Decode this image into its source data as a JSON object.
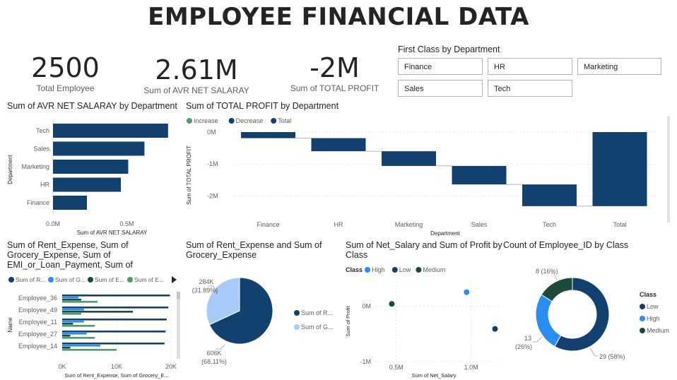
{
  "header": {
    "title": "EMPLOYEE FINANCIAL DATA"
  },
  "kpis": [
    {
      "value": "2500",
      "label": "Total Employee"
    },
    {
      "value": "2.61M",
      "label": "Sum of AVR NET SALARAY"
    },
    {
      "value": "-2M",
      "label": "Sum of TOTAL PROFIT"
    }
  ],
  "slicer": {
    "title": "First Class by Department",
    "options": [
      "Finance",
      "HR",
      "Marketing",
      "Sales",
      "Tech"
    ]
  },
  "colors": {
    "navy": "#12406f",
    "blue": "#2b8cf2",
    "light_blue": "#a6cbf8",
    "dark_green": "#1e4a3c",
    "green": "#4e9a6f",
    "connector": "#9e9e9e"
  },
  "chart_data": [
    {
      "id": "salary_by_dept",
      "type": "bar",
      "orientation": "horizontal",
      "title": "Sum of AVR NET SALARAY by Department",
      "xlabel": "Sum of AVR NET SALARAY",
      "ylabel": "Department",
      "categories": [
        "Tech",
        "Sales",
        "Marketing",
        "HR",
        "Finance"
      ],
      "values": [
        0.78,
        0.62,
        0.51,
        0.46,
        0.23
      ],
      "xlim": [
        0,
        0.8
      ],
      "xticks": [
        {
          "v": 0,
          "label": "0.0M"
        },
        {
          "v": 0.5,
          "label": "0.5M"
        }
      ]
    },
    {
      "id": "profit_waterfall",
      "type": "bar",
      "subtype": "waterfall",
      "title": "Sum of TOTAL PROFIT by Department",
      "xlabel": "Department",
      "ylabel": "Sum of TOTAL PROFIT",
      "legend": [
        "Increase",
        "Decrease",
        "Total"
      ],
      "categories": [
        "Finance",
        "HR",
        "Marketing",
        "Sales",
        "Tech",
        "Total"
      ],
      "values": [
        -0.19,
        -0.41,
        -0.46,
        -0.58,
        -0.68,
        -2.32
      ],
      "ylim": [
        -2.5,
        0
      ],
      "yticks": [
        {
          "v": 0,
          "label": "0M"
        },
        {
          "v": -1,
          "label": "-1M"
        },
        {
          "v": -2,
          "label": "-2M"
        }
      ]
    },
    {
      "id": "expenses_by_employee",
      "type": "bar",
      "orientation": "horizontal",
      "title": "Sum of Rent_Expense, Sum of Grocery_Expense, Sum of EMI_or_Loan_Payment, Sum of Entertain...",
      "xlabel": "Sum of Rent_Expense, Sum of Grocery_E...",
      "ylabel": "Name",
      "legend": [
        "Sum of R...",
        "Sum of G...",
        "Sum of E...",
        "Sum of E..."
      ],
      "categories": [
        "Employee_36",
        "Employee_49",
        "Employee_11",
        "Employee_27",
        "Employee_14"
      ],
      "series": [
        {
          "values": [
            19800,
            19500,
            19200,
            19000,
            18800
          ]
        },
        {
          "values": [
            3000,
            4000,
            4000,
            4500,
            7000
          ]
        },
        {
          "values": [
            3500,
            13000,
            2000,
            1500,
            1500
          ]
        },
        {
          "values": [
            6500,
            3500,
            6000,
            6000,
            10000
          ]
        }
      ],
      "xlim": [
        0,
        20000
      ],
      "xticks": [
        {
          "v": 0,
          "label": "0K"
        },
        {
          "v": 10000,
          "label": "10K"
        },
        {
          "v": 20000,
          "label": "20K"
        }
      ]
    },
    {
      "id": "rent_grocery_pie",
      "type": "pie",
      "title": "Sum of Rent_Expense and Sum of Grocery_Expense",
      "legend": [
        "Sum of R...",
        "Sum of G..."
      ],
      "slices": [
        {
          "value": 606,
          "label": "606K",
          "pct": "(68.11%)"
        },
        {
          "value": 284,
          "label": "284K",
          "pct": "(31.89%)"
        }
      ]
    },
    {
      "id": "salary_profit_scatter",
      "type": "scatter",
      "title": "Sum of Net_Salary and Sum of Profit by Class",
      "legend_title": "Class",
      "xlabel": "Sum of Net_Salary",
      "ylabel": "Sum of Profit",
      "points": [
        {
          "name": "High",
          "x": 0.97,
          "y": 0.25
        },
        {
          "name": "Low",
          "x": 1.16,
          "y": -0.41
        },
        {
          "name": "Medium",
          "x": 0.47,
          "y": 0.04
        }
      ],
      "xlim": [
        0.35,
        1.2
      ],
      "ylim": [
        -1.0,
        0.45
      ],
      "xticks": [
        {
          "v": 0.5,
          "label": "0.5M"
        },
        {
          "v": 1.0,
          "label": "1.0M"
        }
      ],
      "yticks": [
        {
          "v": 0,
          "label": "0M"
        },
        {
          "v": -1,
          "label": "-1M"
        }
      ]
    },
    {
      "id": "employees_by_class_donut",
      "type": "pie",
      "subtype": "donut",
      "title": "Count of Employee_ID by Class",
      "legend_title": "Class",
      "slices": [
        {
          "name": "Low",
          "value": 29,
          "label": "29 (58%)"
        },
        {
          "name": "High",
          "value": 13,
          "label": "13",
          "pct": "(26%)"
        },
        {
          "name": "Medium",
          "value": 8,
          "label": "8 (16%)"
        }
      ]
    }
  ]
}
